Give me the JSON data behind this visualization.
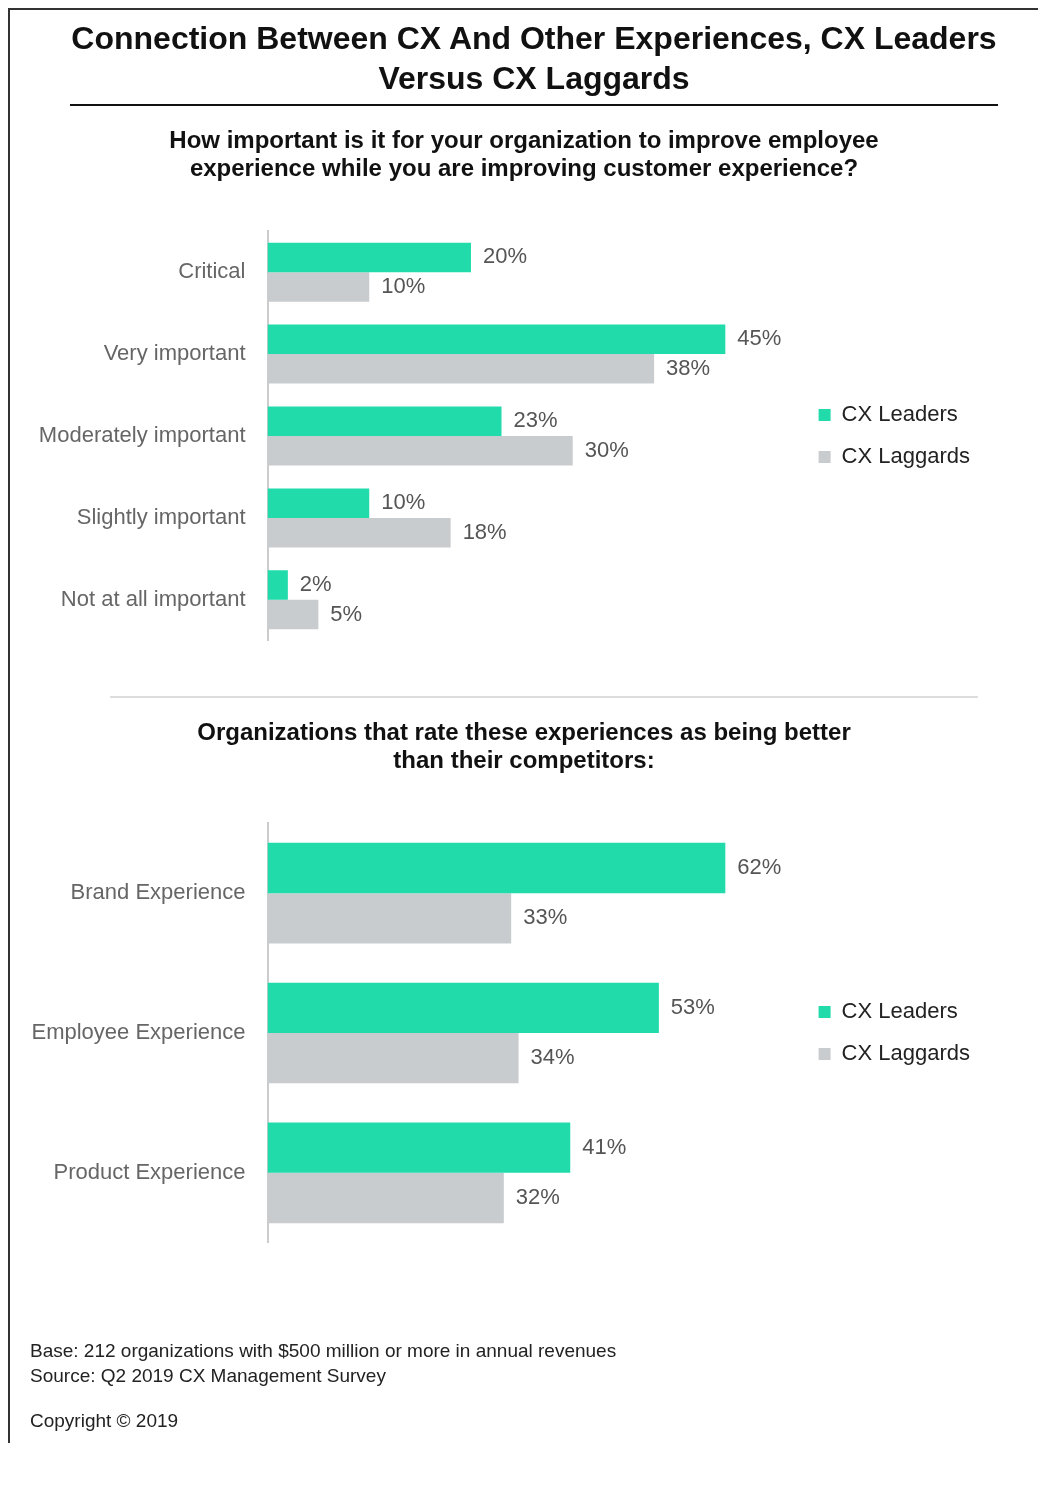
{
  "chart_data": [
    {
      "type": "bar",
      "orientation": "horizontal",
      "title": "Connection Between CX And Other Experiences, CX Leaders Versus CX Laggards",
      "subtitle": "How important is it for your organization to improve employee experience while you are improving customer experience?",
      "categories": [
        "Critical",
        "Very important",
        "Moderately important",
        "Slightly important",
        "Not at all important"
      ],
      "series": [
        {
          "name": "CX Leaders",
          "color": "#22dbab",
          "values": [
            20,
            45,
            23,
            10,
            2
          ],
          "value_labels": [
            "20%",
            "45%",
            "23%",
            "10%",
            "2%"
          ]
        },
        {
          "name": "CX Laggards",
          "color": "#c9cccf",
          "values": [
            10,
            38,
            30,
            18,
            5
          ],
          "value_labels": [
            "10%",
            "38%",
            "30%",
            "18%",
            "5%"
          ]
        }
      ],
      "legend": "right",
      "grid": false,
      "tick_labels": "y"
    },
    {
      "type": "bar",
      "orientation": "horizontal",
      "title": "Organizations that rate these experiences as being better than their competitors:",
      "categories": [
        "Brand Experience",
        "Employee Experience",
        "Product Experience"
      ],
      "series": [
        {
          "name": "CX Leaders",
          "color": "#22dbab",
          "values": [
            62,
            53,
            41
          ],
          "value_labels": [
            "62%",
            "53%",
            "41%"
          ]
        },
        {
          "name": "CX Laggards",
          "color": "#c9cccf",
          "values": [
            33,
            34,
            32
          ],
          "value_labels": [
            "33%",
            "34%",
            "32%"
          ]
        }
      ],
      "legend": "right",
      "grid": false,
      "tick_labels": "y",
      "annotations": [
        "Base:   212 organizations with $500 million or more in annual revenues",
        "Source:   Q2 2019 CX Management Survey",
        "Copyright © 2019"
      ]
    }
  ]
}
